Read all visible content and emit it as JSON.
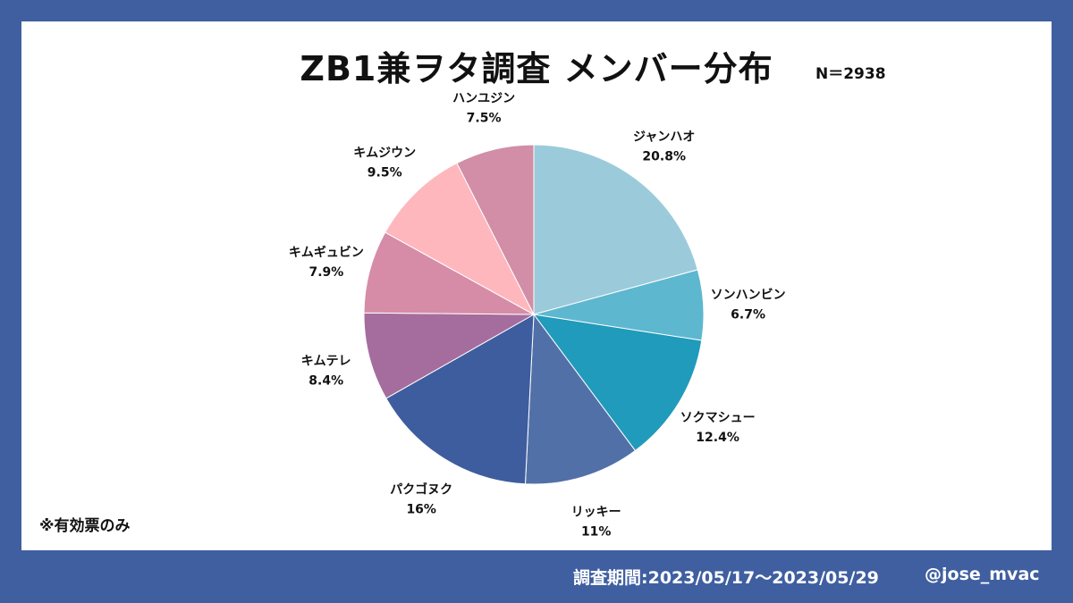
{
  "footer": {
    "period": "調査期間:2023/05/17〜2023/05/29",
    "handle": "@jose_mvac"
  },
  "note": "※有効票のみ",
  "chart_data": {
    "type": "pie",
    "title": "ZB1兼ヲタ調査 メンバー分布",
    "sample_size_label": "N＝2938",
    "start_angle": "12 o'clock, clockwise",
    "slices": [
      {
        "label": "ジャンハオ",
        "value": 20.8,
        "display": "20.8%",
        "color": "#9bcbdb"
      },
      {
        "label": "ソンハンビン",
        "value": 6.7,
        "display": "6.7%",
        "color": "#5db7cf"
      },
      {
        "label": "ソクマシュー",
        "value": 12.4,
        "display": "12.4%",
        "color": "#209bbb"
      },
      {
        "label": "リッキー",
        "value": 11,
        "display": "11%",
        "color": "#5270a8"
      },
      {
        "label": "パクゴヌク",
        "value": 16,
        "display": "16%",
        "color": "#3d5d9e"
      },
      {
        "label": "キムテレ",
        "value": 8.4,
        "display": "8.4%",
        "color": "#a56d9d"
      },
      {
        "label": "キムギュビン",
        "value": 7.9,
        "display": "7.9%",
        "color": "#d68ca7"
      },
      {
        "label": "キムジウン",
        "value": 9.5,
        "display": "9.5%",
        "color": "#feb7bd"
      },
      {
        "label": "ハンユジン",
        "value": 7.5,
        "display": "7.5%",
        "color": "#d18ea6"
      }
    ]
  }
}
